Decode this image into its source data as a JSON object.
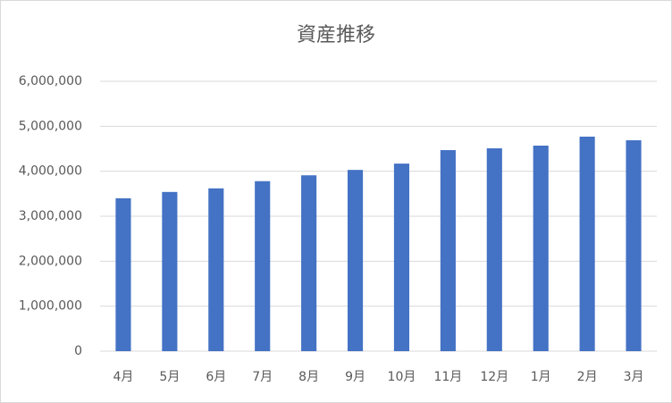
{
  "chart_data": {
    "type": "bar",
    "title": "資産推移",
    "categories": [
      "4月",
      "5月",
      "6月",
      "7月",
      "8月",
      "9月",
      "10月",
      "11月",
      "12月",
      "1月",
      "2月",
      "3月"
    ],
    "values": [
      3400000,
      3540000,
      3620000,
      3780000,
      3910000,
      4030000,
      4170000,
      4470000,
      4510000,
      4570000,
      4770000,
      4690000
    ],
    "color": "#4472c4",
    "ylim": [
      0,
      6000000
    ],
    "yticks": [
      0,
      {
        "value": 1000000,
        "label": "1,000,000"
      },
      {
        "value": 2000000,
        "label": "2,000,000"
      },
      {
        "value": 3000000,
        "label": "3,000,000"
      },
      {
        "value": 4000000,
        "label": "4,000,000"
      },
      {
        "value": 5000000,
        "label": "5,000,000"
      },
      {
        "value": 6000000,
        "label": "6,000,000"
      }
    ],
    "grid": true
  }
}
